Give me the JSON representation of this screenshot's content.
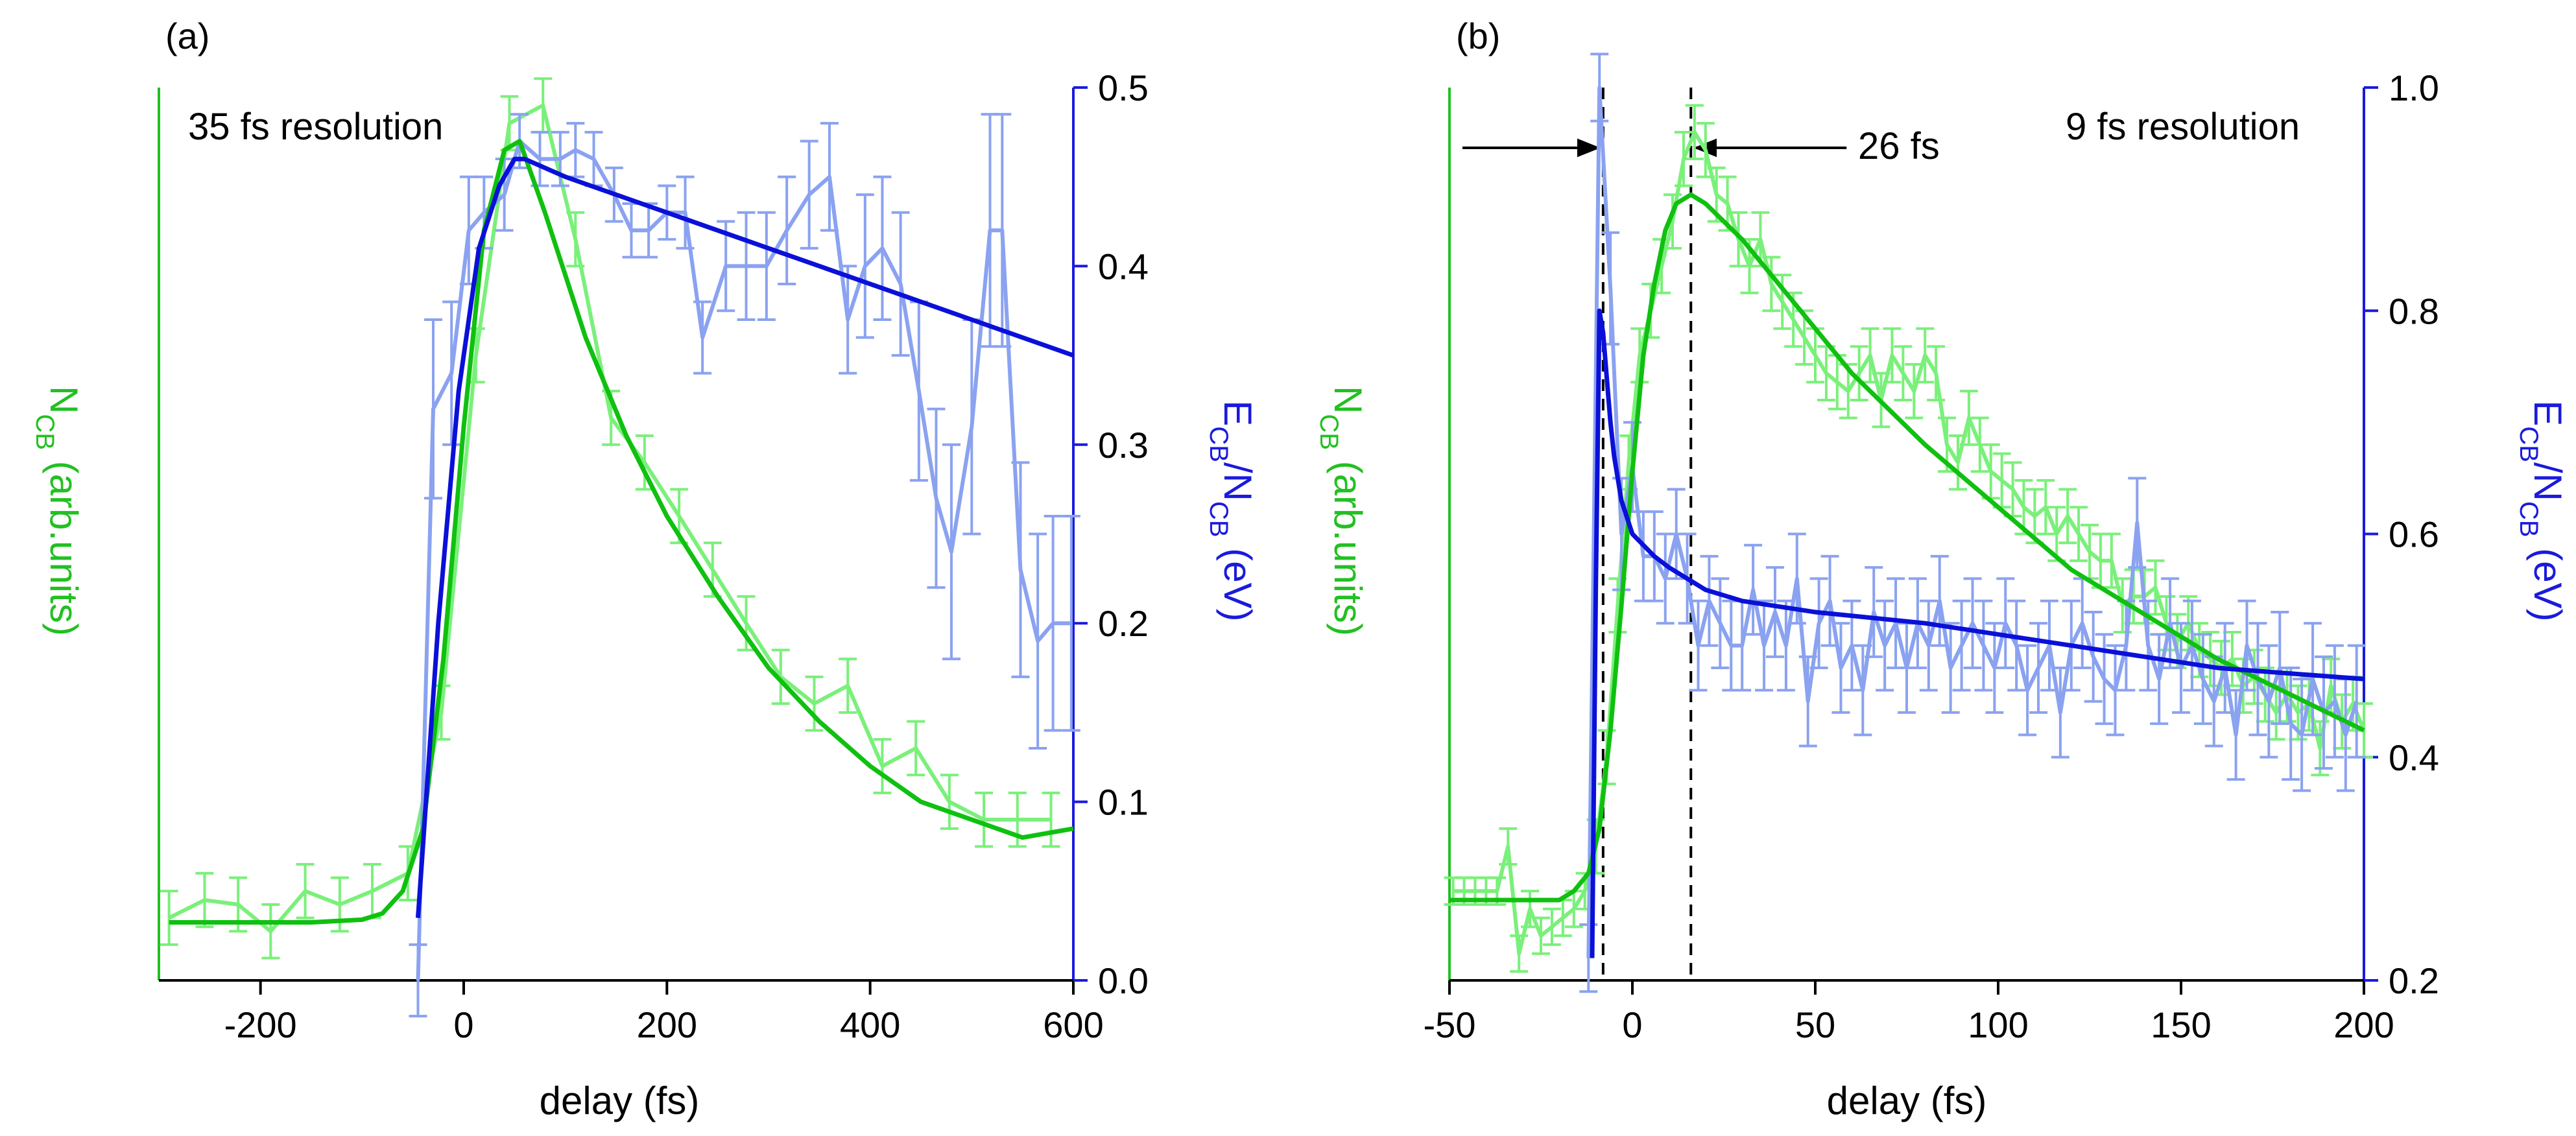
{
  "colors": {
    "ncb_data": "#7af07a",
    "ncb_fit": "#10c010",
    "ecb_data": "#8aa2f0",
    "ecb_fit": "#0a10d8",
    "left_axis": "#22c022",
    "right_axis": "#1a1add",
    "dashed": "#000000"
  },
  "chart_data": [
    {
      "type": "line",
      "panel_label": "(a)",
      "annotation": "35 fs resolution",
      "xlabel": "delay (fs)",
      "ylabel_left": {
        "main": "N",
        "sub": "CB",
        "rest": " (arb.units)"
      },
      "ylabel_right": {
        "main1": "E",
        "sub1": "CB",
        "mid": "/N",
        "sub2": "CB",
        "rest": " (eV)"
      },
      "xlim": [
        -300,
        600
      ],
      "x_ticks": [
        -200,
        0,
        200,
        400,
        600
      ],
      "x_tick_labels": [
        "-200",
        "0",
        "200",
        "400",
        "600"
      ],
      "ylim_left": [
        0,
        1
      ],
      "ylim_right": [
        0,
        0.5
      ],
      "y_right_ticks": [
        0.0,
        0.1,
        0.2,
        0.3,
        0.4,
        0.5
      ],
      "y_right_tick_labels": [
        "0.0",
        "0.1",
        "0.2",
        "0.3",
        "0.4",
        "0.5"
      ],
      "series": [
        {
          "key": "ncb_data",
          "axis": "left",
          "style": "data",
          "x": [
            -290,
            -255,
            -222,
            -190,
            -156,
            -122,
            -90,
            -55,
            -22,
            12,
            45,
            78,
            110,
            145,
            178,
            212,
            245,
            278,
            312,
            345,
            378,
            412,
            445,
            478,
            512,
            545,
            578
          ],
          "y": [
            0.07,
            0.09,
            0.085,
            0.055,
            0.1,
            0.085,
            0.1,
            0.12,
            0.3,
            0.7,
            0.96,
            0.98,
            0.83,
            0.63,
            0.58,
            0.52,
            0.46,
            0.4,
            0.34,
            0.31,
            0.33,
            0.24,
            0.26,
            0.2,
            0.18,
            0.18,
            0.18
          ],
          "err": [
            0.03,
            0.03,
            0.03,
            0.03,
            0.03,
            0.03,
            0.03,
            0.03,
            0.03,
            0.03,
            0.03,
            0.03,
            0.03,
            0.03,
            0.03,
            0.03,
            0.03,
            0.03,
            0.03,
            0.03,
            0.03,
            0.03,
            0.03,
            0.03,
            0.03,
            0.03,
            0.03
          ]
        },
        {
          "key": "ncb_fit",
          "axis": "left",
          "style": "fit",
          "x": [
            -290,
            -150,
            -100,
            -80,
            -60,
            -40,
            -20,
            0,
            20,
            40,
            55,
            80,
            120,
            160,
            200,
            250,
            300,
            350,
            400,
            450,
            500,
            550,
            600
          ],
          "y": [
            0.065,
            0.065,
            0.068,
            0.075,
            0.1,
            0.17,
            0.36,
            0.62,
            0.84,
            0.93,
            0.94,
            0.86,
            0.72,
            0.61,
            0.52,
            0.43,
            0.35,
            0.29,
            0.24,
            0.2,
            0.18,
            0.16,
            0.17
          ]
        },
        {
          "key": "ecb_data",
          "axis": "right",
          "style": "data",
          "x": [
            -45,
            -30,
            -12,
            5,
            20,
            40,
            55,
            75,
            95,
            110,
            128,
            148,
            165,
            182,
            200,
            218,
            235,
            258,
            278,
            298,
            318,
            340,
            360,
            378,
            395,
            412,
            430,
            448,
            465,
            480,
            500,
            518,
            530,
            548,
            565,
            580,
            598
          ],
          "y": [
            0.0,
            0.32,
            0.34,
            0.42,
            0.43,
            0.44,
            0.47,
            0.46,
            0.46,
            0.465,
            0.46,
            0.44,
            0.42,
            0.42,
            0.43,
            0.43,
            0.36,
            0.4,
            0.4,
            0.4,
            0.42,
            0.44,
            0.45,
            0.37,
            0.4,
            0.41,
            0.39,
            0.33,
            0.27,
            0.24,
            0.31,
            0.42,
            0.42,
            0.23,
            0.19,
            0.2,
            0.2
          ],
          "err": [
            0.02,
            0.05,
            0.04,
            0.03,
            0.02,
            0.02,
            0.015,
            0.015,
            0.015,
            0.015,
            0.015,
            0.015,
            0.015,
            0.015,
            0.015,
            0.02,
            0.02,
            0.025,
            0.03,
            0.03,
            0.03,
            0.03,
            0.03,
            0.03,
            0.04,
            0.04,
            0.04,
            0.05,
            0.05,
            0.06,
            0.06,
            0.065,
            0.065,
            0.06,
            0.06,
            0.06,
            0.06
          ]
        },
        {
          "key": "ecb_fit",
          "axis": "right",
          "style": "fit",
          "x": [
            -45,
            -25,
            -5,
            15,
            35,
            50,
            60,
            100,
            200,
            300,
            400,
            500,
            600
          ],
          "y": [
            0.035,
            0.2,
            0.33,
            0.41,
            0.445,
            0.46,
            0.46,
            0.45,
            0.43,
            0.41,
            0.39,
            0.37,
            0.35
          ]
        }
      ]
    },
    {
      "type": "line",
      "panel_label": "(b)",
      "annotation": "9 fs resolution",
      "marker_label": "26 fs",
      "xlabel": "delay (fs)",
      "ylabel_left": {
        "main": "N",
        "sub": "CB",
        "rest": " (arb.units)"
      },
      "ylabel_right": {
        "main1": "E",
        "sub1": "CB",
        "mid": "/N",
        "sub2": "CB",
        "rest": " (eV)"
      },
      "xlim": [
        -50,
        200
      ],
      "x_ticks": [
        -50,
        0,
        50,
        100,
        150,
        200
      ],
      "x_tick_labels": [
        "-50",
        "0",
        "50",
        "100",
        "150",
        "200"
      ],
      "ylim_left": [
        0,
        1
      ],
      "ylim_right": [
        0.2,
        1.0
      ],
      "y_right_ticks": [
        0.2,
        0.4,
        0.6,
        0.8,
        1.0
      ],
      "y_right_tick_labels": [
        "0.2",
        "0.4",
        "0.6",
        "0.8",
        "1.0"
      ],
      "dashed_lines_x": [
        -8,
        16
      ],
      "series": [
        {
          "key": "ncb_data",
          "axis": "left",
          "style": "data",
          "x": [
            -49,
            -46,
            -43,
            -40,
            -37,
            -34,
            -31,
            -28,
            -25,
            -22,
            -19,
            -16,
            -13,
            -10,
            -7,
            -4,
            -1,
            2,
            5,
            8,
            11,
            14,
            17,
            20,
            23,
            26,
            29,
            32,
            35,
            38,
            41,
            44,
            47,
            50,
            53,
            56,
            59,
            62,
            65,
            68,
            71,
            74,
            77,
            80,
            83,
            86,
            89,
            92,
            95,
            98,
            101,
            104,
            107,
            110,
            113,
            116,
            119,
            122,
            125,
            128,
            131,
            134,
            137,
            140,
            143,
            146,
            149,
            152,
            155,
            158,
            161,
            164,
            167,
            170,
            173,
            176,
            179,
            182,
            185,
            188,
            191,
            194,
            197,
            200
          ],
          "y": [
            0.1,
            0.1,
            0.1,
            0.1,
            0.1,
            0.15,
            0.03,
            0.08,
            0.05,
            0.06,
            0.07,
            0.08,
            0.1,
            0.15,
            0.25,
            0.42,
            0.58,
            0.7,
            0.75,
            0.8,
            0.85,
            0.92,
            0.95,
            0.93,
            0.88,
            0.87,
            0.83,
            0.8,
            0.83,
            0.78,
            0.76,
            0.74,
            0.72,
            0.7,
            0.68,
            0.67,
            0.66,
            0.68,
            0.7,
            0.65,
            0.7,
            0.68,
            0.66,
            0.7,
            0.68,
            0.6,
            0.58,
            0.63,
            0.6,
            0.57,
            0.56,
            0.55,
            0.53,
            0.52,
            0.53,
            0.5,
            0.52,
            0.5,
            0.48,
            0.47,
            0.47,
            0.42,
            0.43,
            0.43,
            0.44,
            0.4,
            0.38,
            0.4,
            0.37,
            0.36,
            0.35,
            0.36,
            0.33,
            0.34,
            0.32,
            0.3,
            0.32,
            0.3,
            0.31,
            0.26,
            0.33,
            0.29,
            0.31,
            0.28
          ],
          "err": [
            0.015,
            0.015,
            0.015,
            0.015,
            0.015,
            0.02,
            0.02,
            0.02,
            0.02,
            0.02,
            0.02,
            0.02,
            0.02,
            0.03,
            0.03,
            0.03,
            0.03,
            0.03,
            0.03,
            0.03,
            0.03,
            0.03,
            0.03,
            0.03,
            0.03,
            0.03,
            0.03,
            0.03,
            0.03,
            0.03,
            0.03,
            0.03,
            0.03,
            0.03,
            0.03,
            0.03,
            0.03,
            0.03,
            0.03,
            0.03,
            0.03,
            0.03,
            0.03,
            0.03,
            0.03,
            0.03,
            0.03,
            0.03,
            0.03,
            0.03,
            0.03,
            0.03,
            0.03,
            0.03,
            0.03,
            0.03,
            0.03,
            0.03,
            0.03,
            0.03,
            0.03,
            0.03,
            0.03,
            0.03,
            0.03,
            0.03,
            0.03,
            0.03,
            0.03,
            0.03,
            0.03,
            0.03,
            0.03,
            0.03,
            0.03,
            0.03,
            0.03,
            0.03,
            0.03,
            0.03,
            0.03,
            0.03,
            0.03,
            0.03
          ]
        },
        {
          "key": "ncb_fit",
          "axis": "left",
          "style": "fit",
          "x": [
            -50,
            -20,
            -16,
            -12,
            -9,
            -6,
            -3,
            0,
            3,
            6,
            9,
            12,
            16,
            20,
            30,
            40,
            60,
            80,
            100,
            120,
            140,
            160,
            180,
            200
          ],
          "y": [
            0.09,
            0.09,
            0.1,
            0.12,
            0.17,
            0.28,
            0.42,
            0.57,
            0.7,
            0.78,
            0.84,
            0.87,
            0.88,
            0.87,
            0.83,
            0.78,
            0.68,
            0.6,
            0.53,
            0.46,
            0.41,
            0.36,
            0.32,
            0.28
          ]
        },
        {
          "key": "ecb_data",
          "axis": "right",
          "style": "data",
          "x": [
            -12,
            -9,
            -6,
            -3,
            0,
            3,
            6,
            9,
            12,
            15,
            18,
            21,
            24,
            27,
            30,
            33,
            36,
            39,
            42,
            45,
            48,
            51,
            54,
            57,
            60,
            63,
            66,
            69,
            72,
            75,
            78,
            81,
            84,
            87,
            90,
            93,
            96,
            99,
            102,
            105,
            108,
            111,
            114,
            117,
            120,
            123,
            126,
            129,
            132,
            135,
            138,
            141,
            144,
            147,
            150,
            153,
            156,
            159,
            162,
            165,
            168,
            171,
            174,
            177,
            180,
            183,
            186,
            189,
            192,
            195,
            198
          ],
          "y": [
            0.22,
            1.0,
            0.82,
            0.6,
            0.66,
            0.58,
            0.58,
            0.56,
            0.6,
            0.56,
            0.5,
            0.54,
            0.52,
            0.5,
            0.5,
            0.55,
            0.5,
            0.53,
            0.5,
            0.56,
            0.45,
            0.52,
            0.54,
            0.48,
            0.5,
            0.46,
            0.53,
            0.5,
            0.52,
            0.48,
            0.52,
            0.5,
            0.54,
            0.48,
            0.5,
            0.52,
            0.5,
            0.48,
            0.52,
            0.5,
            0.46,
            0.48,
            0.5,
            0.44,
            0.5,
            0.52,
            0.49,
            0.47,
            0.46,
            0.5,
            0.61,
            0.5,
            0.47,
            0.52,
            0.48,
            0.5,
            0.47,
            0.45,
            0.48,
            0.42,
            0.5,
            0.47,
            0.45,
            0.48,
            0.43,
            0.42,
            0.47,
            0.44,
            0.45,
            0.42,
            0.45
          ],
          "err": [
            0.03,
            0.03,
            0.05,
            0.05,
            0.04,
            0.04,
            0.04,
            0.04,
            0.04,
            0.04,
            0.04,
            0.04,
            0.04,
            0.04,
            0.04,
            0.04,
            0.04,
            0.04,
            0.04,
            0.04,
            0.04,
            0.04,
            0.04,
            0.04,
            0.04,
            0.04,
            0.04,
            0.04,
            0.04,
            0.04,
            0.04,
            0.04,
            0.04,
            0.04,
            0.04,
            0.04,
            0.04,
            0.04,
            0.04,
            0.04,
            0.04,
            0.04,
            0.04,
            0.04,
            0.04,
            0.04,
            0.04,
            0.04,
            0.04,
            0.04,
            0.04,
            0.04,
            0.04,
            0.04,
            0.04,
            0.04,
            0.04,
            0.04,
            0.04,
            0.04,
            0.04,
            0.05,
            0.05,
            0.05,
            0.05,
            0.05,
            0.05,
            0.05,
            0.05,
            0.05,
            0.05
          ]
        },
        {
          "key": "ecb_fit",
          "axis": "right",
          "style": "fit",
          "x": [
            -11,
            -10,
            -9,
            -8,
            -7,
            -6,
            -5,
            -3,
            0,
            3,
            6,
            10,
            15,
            20,
            30,
            50,
            80,
            120,
            160,
            200
          ],
          "y": [
            0.22,
            0.55,
            0.8,
            0.78,
            0.74,
            0.7,
            0.67,
            0.63,
            0.6,
            0.59,
            0.58,
            0.57,
            0.56,
            0.55,
            0.54,
            0.53,
            0.52,
            0.5,
            0.48,
            0.47
          ]
        }
      ]
    }
  ]
}
